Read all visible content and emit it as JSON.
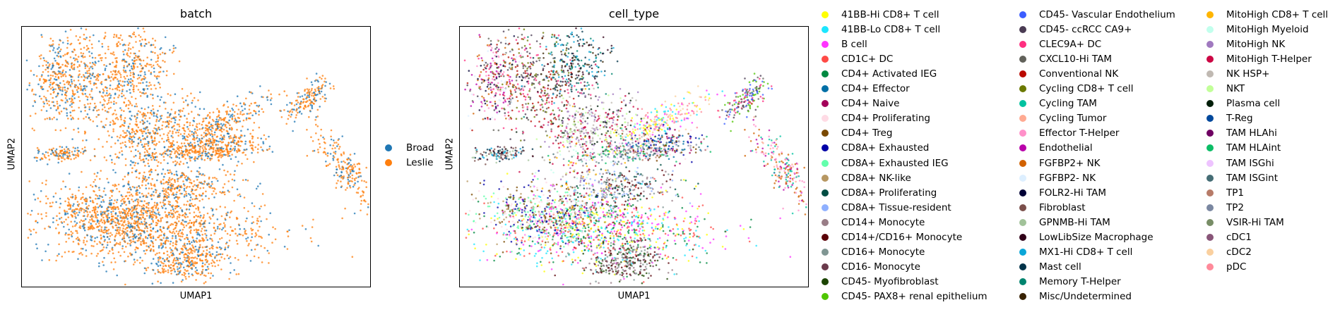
{
  "chart_data": [
    {
      "type": "scatter",
      "title": "batch",
      "xlabel": "UMAP1",
      "ylabel": "UMAP2",
      "grid": false,
      "legend_placement": "right",
      "series": [
        {
          "name": "Broad",
          "color": "#1f77b4"
        },
        {
          "name": "Leslie",
          "color": "#ff7f0e"
        }
      ]
    },
    {
      "type": "scatter",
      "title": "cell_type",
      "xlabel": "UMAP1",
      "ylabel": "UMAP2",
      "grid": false,
      "legend_placement": "right",
      "series": [
        {
          "name": "41BB-Hi CD8+ T cell",
          "color": "#ffff00"
        },
        {
          "name": "41BB-Lo CD8+ T cell",
          "color": "#1ce6ff"
        },
        {
          "name": "B cell",
          "color": "#ff34ff"
        },
        {
          "name": "CD1C+ DC",
          "color": "#ff4a46"
        },
        {
          "name": "CD4+ Activated IEG",
          "color": "#008941"
        },
        {
          "name": "CD4+ Effector",
          "color": "#006fa6"
        },
        {
          "name": "CD4+ Naive",
          "color": "#a30059"
        },
        {
          "name": "CD4+ Proliferating",
          "color": "#ffdbe5"
        },
        {
          "name": "CD4+ Treg",
          "color": "#7a4900"
        },
        {
          "name": "CD8A+ Exhausted",
          "color": "#0000a6"
        },
        {
          "name": "CD8A+ Exhausted IEG",
          "color": "#63ffac"
        },
        {
          "name": "CD8A+ NK-like",
          "color": "#b79762"
        },
        {
          "name": "CD8A+ Proliferating",
          "color": "#004d43"
        },
        {
          "name": "CD8A+ Tissue-resident",
          "color": "#8fb0ff"
        },
        {
          "name": "CD14+ Monocyte",
          "color": "#997d87"
        },
        {
          "name": "CD14+/CD16+ Monocyte",
          "color": "#5a0007"
        },
        {
          "name": "CD16+ Monocyte",
          "color": "#809693"
        },
        {
          "name": "CD16- Monocyte",
          "color": "#6a3a4c"
        },
        {
          "name": "CD45- Myofibroblast",
          "color": "#1b4400"
        },
        {
          "name": "CD45- PAX8+ renal epithelium",
          "color": "#4fc601"
        },
        {
          "name": "CD45- Vascular Endothelium",
          "color": "#3b5dff"
        },
        {
          "name": "CD45- ccRCC CA9+",
          "color": "#4a3b53"
        },
        {
          "name": "CLEC9A+ DC",
          "color": "#ff2f80"
        },
        {
          "name": "CXCL10-Hi TAM",
          "color": "#61615a"
        },
        {
          "name": "Conventional NK",
          "color": "#ba0900"
        },
        {
          "name": "Cycling CD8+ T cell",
          "color": "#6b7900"
        },
        {
          "name": "Cycling TAM",
          "color": "#00c2a0"
        },
        {
          "name": "Cycling Tumor",
          "color": "#ffaa92"
        },
        {
          "name": "Effector T-Helper",
          "color": "#ff90c9"
        },
        {
          "name": "Endothelial",
          "color": "#b903aa"
        },
        {
          "name": "FGFBP2+ NK",
          "color": "#d16100"
        },
        {
          "name": "FGFBP2- NK",
          "color": "#ddefff"
        },
        {
          "name": "FOLR2-Hi TAM",
          "color": "#000035"
        },
        {
          "name": "Fibroblast",
          "color": "#7b4f4b"
        },
        {
          "name": "GPNMB-Hi TAM",
          "color": "#a1c299"
        },
        {
          "name": "LowLibSize Macrophage",
          "color": "#300018"
        },
        {
          "name": "MX1-Hi CD8+ T cell",
          "color": "#0aa6d8"
        },
        {
          "name": "Mast cell",
          "color": "#013349"
        },
        {
          "name": "Memory T-Helper",
          "color": "#00846f"
        },
        {
          "name": "Misc/Undetermined",
          "color": "#372101"
        },
        {
          "name": "MitoHigh CD8+ T cell",
          "color": "#ffb500"
        },
        {
          "name": "MitoHigh Myeloid",
          "color": "#c2ffed"
        },
        {
          "name": "MitoHigh NK",
          "color": "#a079bf"
        },
        {
          "name": "MitoHigh T-Helper",
          "color": "#cc0744"
        },
        {
          "name": "NK HSP+",
          "color": "#c0b9b2"
        },
        {
          "name": "NKT",
          "color": "#c2ff99"
        },
        {
          "name": "Plasma cell",
          "color": "#001e09"
        },
        {
          "name": "T-Reg",
          "color": "#00489c"
        },
        {
          "name": "TAM HLAhi",
          "color": "#6f0062"
        },
        {
          "name": "TAM HLAint",
          "color": "#0cbd66"
        },
        {
          "name": "TAM ISGhi",
          "color": "#eec3ff"
        },
        {
          "name": "TAM ISGint",
          "color": "#456d75"
        },
        {
          "name": "TP1",
          "color": "#b77b68"
        },
        {
          "name": "TP2",
          "color": "#7a87a1"
        },
        {
          "name": "VSIR-Hi TAM",
          "color": "#788d66"
        },
        {
          "name": "cDC1",
          "color": "#885578"
        },
        {
          "name": "cDC2",
          "color": "#fad09f"
        },
        {
          "name": "pDC",
          "color": "#ff8a9a"
        }
      ]
    }
  ]
}
